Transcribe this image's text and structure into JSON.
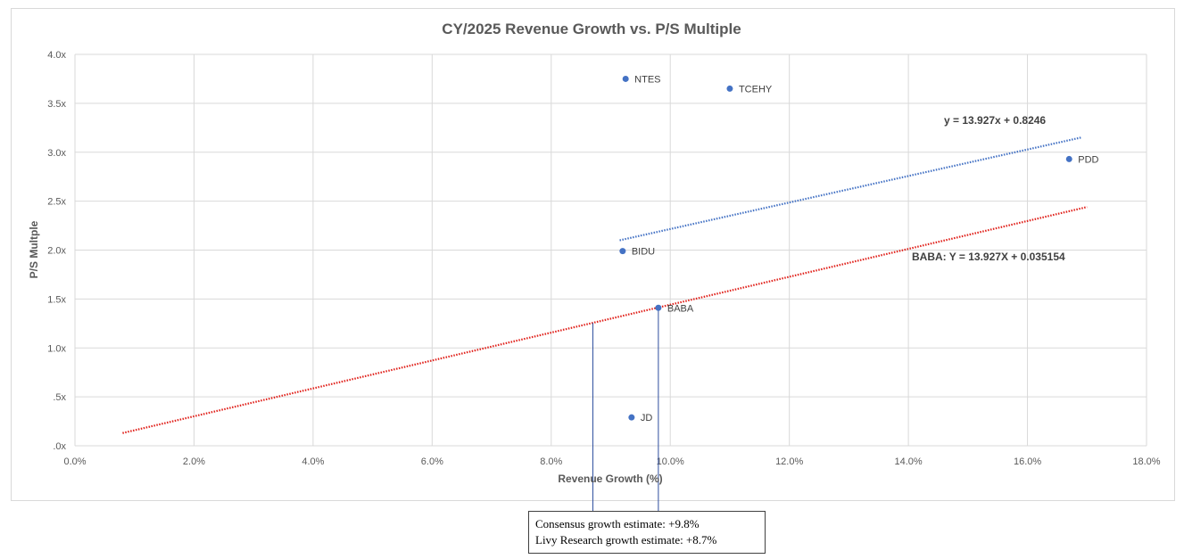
{
  "chart_data": {
    "type": "scatter",
    "title": "CY/2025 Revenue Growth vs. P/S Multiple",
    "xlabel": "Revenue Growth (%)",
    "ylabel": "P/S Multple",
    "xlim": [
      0,
      18
    ],
    "ylim": [
      0,
      4
    ],
    "x_ticks": [
      "0.0%",
      "2.0%",
      "4.0%",
      "6.0%",
      "8.0%",
      "10.0%",
      "12.0%",
      "14.0%",
      "16.0%",
      "18.0%"
    ],
    "y_ticks": [
      ".0x",
      ".5x",
      "1.0x",
      "1.5x",
      "2.0x",
      "2.5x",
      "3.0x",
      "3.5x",
      "4.0x"
    ],
    "grid": true,
    "points": [
      {
        "label": "NTES",
        "x": 9.25,
        "y": 3.75
      },
      {
        "label": "TCEHY",
        "x": 11.0,
        "y": 3.65
      },
      {
        "label": "PDD",
        "x": 16.7,
        "y": 2.93
      },
      {
        "label": "BIDU",
        "x": 9.2,
        "y": 1.99
      },
      {
        "label": "BABA",
        "x": 9.8,
        "y": 1.41
      },
      {
        "label": "JD",
        "x": 9.35,
        "y": 0.29
      }
    ],
    "trendlines": [
      {
        "equation": "y = 13.927x + 0.8246",
        "color": "#4472c4",
        "x": [
          9.15,
          16.9
        ],
        "y": [
          2.1,
          3.15
        ]
      },
      {
        "equation": "BABA: Y = 13.927X + 0.035154",
        "color": "#e0201a",
        "x": [
          0.8,
          17.0
        ],
        "y": [
          0.13,
          2.44
        ]
      }
    ],
    "markers": [
      {
        "label": "Consensus growth estimate: +9.8%",
        "x": 9.8
      },
      {
        "label": "Livy Research growth estimate: +8.7%",
        "x": 8.7
      }
    ]
  },
  "colors": {
    "point": "#4472c4",
    "trend_blue": "#4472c4",
    "trend_red": "#e0201a",
    "grid": "#d9d9d9",
    "marker_line": "#2f4f9f"
  }
}
